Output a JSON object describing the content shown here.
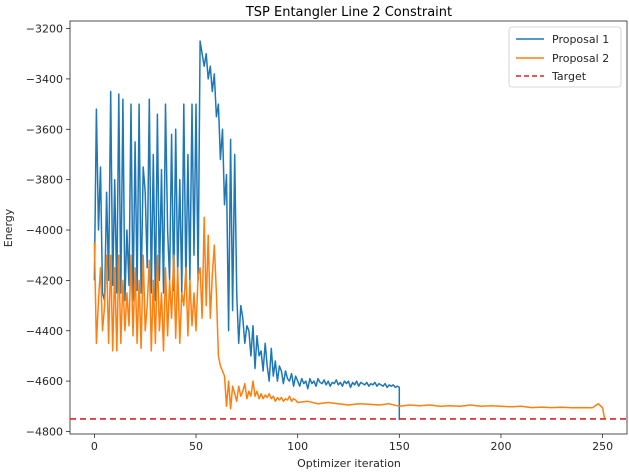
{
  "chart_data": {
    "type": "line",
    "title": "TSP Entangler Line 2 Constraint",
    "xlabel": "Optimizer iteration",
    "ylabel": "Energy",
    "xlim": [
      -12,
      262
    ],
    "ylim": [
      -4810,
      -3170
    ],
    "xticks": [
      0,
      50,
      100,
      150,
      200,
      250
    ],
    "yticks": [
      -4800,
      -4600,
      -4400,
      -4200,
      -4000,
      -3800,
      -3600,
      -3400,
      -3200
    ],
    "grid": false,
    "legend_position": "top-right",
    "colors": {
      "proposal1": "#1f77b4",
      "proposal2": "#ff7f0e",
      "target": "#d62728",
      "axes": "#262626"
    },
    "series": [
      {
        "name": "Proposal 1",
        "style": "solid",
        "x": [
          0,
          1,
          2,
          3,
          4,
          5,
          6,
          7,
          8,
          9,
          10,
          11,
          12,
          13,
          14,
          15,
          16,
          17,
          18,
          19,
          20,
          21,
          22,
          23,
          24,
          25,
          26,
          27,
          28,
          29,
          30,
          31,
          32,
          33,
          34,
          35,
          36,
          37,
          38,
          39,
          40,
          41,
          42,
          43,
          44,
          45,
          46,
          47,
          48,
          49,
          50,
          51,
          52,
          53,
          54,
          55,
          56,
          57,
          58,
          59,
          60,
          61,
          62,
          63,
          64,
          65,
          66,
          67,
          68,
          69,
          70,
          71,
          72,
          73,
          74,
          75,
          76,
          77,
          78,
          79,
          80,
          81,
          82,
          83,
          84,
          85,
          86,
          87,
          88,
          89,
          90,
          91,
          92,
          93,
          94,
          95,
          96,
          97,
          98,
          99,
          100,
          101,
          102,
          103,
          104,
          105,
          106,
          107,
          108,
          109,
          110,
          111,
          112,
          113,
          114,
          115,
          116,
          117,
          118,
          119,
          120,
          121,
          122,
          123,
          124,
          125,
          126,
          127,
          128,
          129,
          130,
          131,
          132,
          133,
          134,
          135,
          136,
          137,
          138,
          139,
          140,
          141,
          142,
          143,
          144,
          145,
          146,
          147,
          148,
          149,
          150,
          150
        ],
        "values": [
          -4200,
          -3520,
          -4000,
          -3750,
          -4250,
          -4280,
          -3850,
          -4200,
          -3450,
          -4220,
          -3800,
          -4250,
          -3460,
          -4250,
          -3480,
          -4280,
          -4000,
          -4220,
          -3500,
          -4280,
          -3650,
          -4240,
          -3500,
          -4250,
          -3750,
          -3850,
          -4150,
          -3480,
          -4250,
          -3700,
          -4280,
          -3540,
          -4200,
          -3760,
          -4250,
          -3500,
          -4000,
          -4200,
          -3620,
          -4240,
          -3600,
          -4180,
          -3800,
          -4250,
          -3500,
          -4220,
          -3700,
          -4200,
          -3500,
          -4100,
          -3500,
          -4200,
          -3250,
          -3300,
          -3350,
          -3300,
          -3400,
          -3350,
          -3450,
          -3380,
          -3550,
          -3500,
          -3720,
          -3600,
          -3900,
          -3780,
          -4400,
          -3640,
          -4320,
          -3700,
          -4250,
          -4450,
          -4300,
          -4350,
          -4450,
          -4380,
          -4400,
          -4500,
          -4380,
          -4550,
          -4420,
          -4500,
          -4480,
          -4560,
          -4450,
          -4540,
          -4600,
          -4470,
          -4580,
          -4520,
          -4600,
          -4540,
          -4560,
          -4610,
          -4560,
          -4590,
          -4600,
          -4570,
          -4620,
          -4580,
          -4600,
          -4620,
          -4590,
          -4610,
          -4600,
          -4630,
          -4590,
          -4610,
          -4600,
          -4620,
          -4590,
          -4605,
          -4610,
          -4595,
          -4615,
          -4600,
          -4620,
          -4605,
          -4610,
          -4595,
          -4615,
          -4605,
          -4620,
          -4600,
          -4610,
          -4600,
          -4625,
          -4605,
          -4615,
          -4600,
          -4620,
          -4605,
          -4610,
          -4615,
          -4605,
          -4620,
          -4610,
          -4615,
          -4605,
          -4620,
          -4610,
          -4615,
          -4620,
          -4610,
          -4625,
          -4615,
          -4620,
          -4615,
          -4625,
          -4620,
          -4625,
          -4755
        ]
      },
      {
        "name": "Proposal 2",
        "style": "solid",
        "x": [
          0,
          1,
          2,
          3,
          4,
          5,
          6,
          7,
          8,
          9,
          10,
          11,
          12,
          13,
          14,
          15,
          16,
          17,
          18,
          19,
          20,
          21,
          22,
          23,
          24,
          25,
          26,
          27,
          28,
          29,
          30,
          31,
          32,
          33,
          34,
          35,
          36,
          37,
          38,
          39,
          40,
          41,
          42,
          43,
          44,
          45,
          46,
          47,
          48,
          49,
          50,
          51,
          52,
          53,
          54,
          55,
          56,
          57,
          58,
          59,
          60,
          61,
          62,
          63,
          64,
          65,
          66,
          67,
          68,
          69,
          70,
          71,
          72,
          73,
          74,
          75,
          76,
          77,
          78,
          79,
          80,
          81,
          82,
          83,
          84,
          85,
          86,
          87,
          88,
          89,
          90,
          91,
          92,
          93,
          94,
          95,
          96,
          97,
          98,
          99,
          100,
          105,
          110,
          115,
          120,
          125,
          130,
          135,
          140,
          145,
          150,
          155,
          160,
          165,
          170,
          175,
          180,
          185,
          190,
          195,
          200,
          205,
          210,
          215,
          220,
          225,
          230,
          235,
          240,
          245,
          248,
          250,
          251
        ],
        "values": [
          -4050,
          -4450,
          -4280,
          -4150,
          -4400,
          -4300,
          -4100,
          -4450,
          -4100,
          -4480,
          -4150,
          -4480,
          -4100,
          -4450,
          -4200,
          -4400,
          -4250,
          -4380,
          -4100,
          -4420,
          -4150,
          -4450,
          -4200,
          -4470,
          -4100,
          -4400,
          -4300,
          -4120,
          -4480,
          -4200,
          -4450,
          -4100,
          -4400,
          -4250,
          -4480,
          -4150,
          -4420,
          -4200,
          -4350,
          -4100,
          -4430,
          -4150,
          -4450,
          -4250,
          -4300,
          -4150,
          -4420,
          -4200,
          -4380,
          -4250,
          -4400,
          -4180,
          -4150,
          -4350,
          -3950,
          -4300,
          -4020,
          -4350,
          -4180,
          -4060,
          -4250,
          -4500,
          -4540,
          -4560,
          -4580,
          -4700,
          -4600,
          -4710,
          -4620,
          -4650,
          -4680,
          -4620,
          -4660,
          -4640,
          -4610,
          -4670,
          -4640,
          -4660,
          -4600,
          -4660,
          -4640,
          -4670,
          -4650,
          -4670,
          -4655,
          -4665,
          -4650,
          -4670,
          -4660,
          -4680,
          -4665,
          -4675,
          -4665,
          -4680,
          -4670,
          -4675,
          -4660,
          -4680,
          -4670,
          -4675,
          -4685,
          -4680,
          -4690,
          -4685,
          -4690,
          -4695,
          -4690,
          -4692,
          -4695,
          -4690,
          -4700,
          -4695,
          -4698,
          -4695,
          -4700,
          -4698,
          -4700,
          -4695,
          -4700,
          -4698,
          -4700,
          -4702,
          -4700,
          -4705,
          -4703,
          -4705,
          -4704,
          -4706,
          -4705,
          -4706,
          -4690,
          -4706,
          -4750
        ]
      },
      {
        "name": "Target",
        "style": "dashed",
        "constant": -4750
      }
    ]
  }
}
